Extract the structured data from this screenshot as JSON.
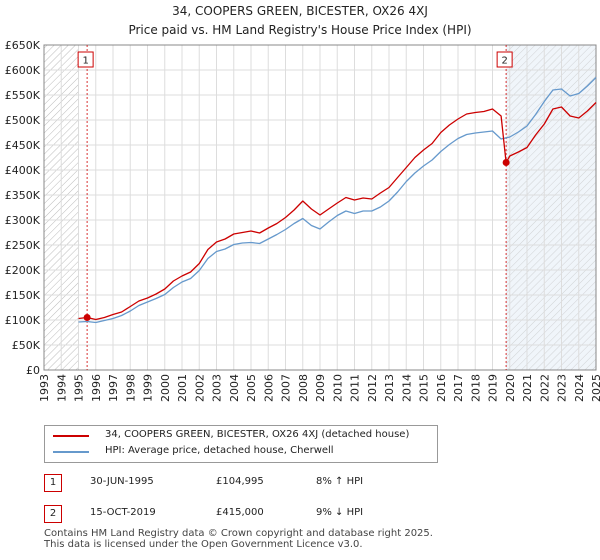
{
  "header": {
    "title": "34, COOPERS GREEN, BICESTER, OX26 4XJ",
    "subtitle": "Price paid vs. HM Land Registry's House Price Index (HPI)"
  },
  "legend": {
    "red_label": "34, COOPERS GREEN, BICESTER, OX26 4XJ (detached house)",
    "blue_label": "HPI: Average price, detached house, Cherwell"
  },
  "sales": [
    {
      "num": "1",
      "date": "30-JUN-1995",
      "price": "£104,995",
      "hpi": "8% ↑ HPI"
    },
    {
      "num": "2",
      "date": "15-OCT-2019",
      "price": "£415,000",
      "hpi": "9% ↓ HPI"
    }
  ],
  "footer": {
    "line1": "Contains HM Land Registry data © Crown copyright and database right 2025.",
    "line2": "This data is licensed under the Open Government Licence v3.0."
  },
  "colors": {
    "red": "#cc0000",
    "blue": "#6699cc",
    "grid": "#dddddd",
    "hatch": "#bbbbbb",
    "shade": "#dde8f4"
  },
  "chart_data": {
    "type": "line",
    "title": "34, COOPERS GREEN, BICESTER, OX26 4XJ",
    "subtitle": "Price paid vs. HM Land Registry's House Price Index (HPI)",
    "xlabel": "",
    "ylabel": "",
    "xlim": [
      1993,
      2025
    ],
    "ylim": [
      0,
      650000
    ],
    "x_ticks": [
      1993,
      1994,
      1995,
      1996,
      1997,
      1998,
      1999,
      2000,
      2001,
      2002,
      2003,
      2004,
      2005,
      2006,
      2007,
      2008,
      2009,
      2010,
      2011,
      2012,
      2013,
      2014,
      2015,
      2016,
      2017,
      2018,
      2019,
      2020,
      2021,
      2022,
      2023,
      2024,
      2025
    ],
    "y_ticks": [
      0,
      50000,
      100000,
      150000,
      200000,
      250000,
      300000,
      350000,
      400000,
      450000,
      500000,
      550000,
      600000,
      650000
    ],
    "y_tick_labels": [
      "£0",
      "£50K",
      "£100K",
      "£150K",
      "£200K",
      "£250K",
      "£300K",
      "£350K",
      "£400K",
      "£450K",
      "£500K",
      "£550K",
      "£600K",
      "£650K"
    ],
    "grid": true,
    "shaded_ranges": [
      [
        1993,
        1995.0
      ],
      [
        2019.79,
        2025
      ]
    ],
    "markers": [
      {
        "label": "1",
        "x": 1995.5,
        "y": 104995
      },
      {
        "label": "2",
        "x": 2019.79,
        "y": 415000
      }
    ],
    "series": [
      {
        "name": "34, COOPERS GREEN, BICESTER, OX26 4XJ (detached house)",
        "color": "#cc0000",
        "x": [
          1995.0,
          1995.5,
          1996,
          1996.5,
          1997,
          1997.5,
          1998,
          1998.5,
          1999,
          1999.5,
          2000,
          2000.5,
          2001,
          2001.5,
          2002,
          2002.5,
          2003,
          2003.5,
          2004,
          2004.5,
          2005,
          2005.5,
          2006,
          2006.5,
          2007,
          2007.5,
          2008,
          2008.5,
          2009,
          2009.5,
          2010,
          2010.5,
          2011,
          2011.5,
          2012,
          2012.5,
          2013,
          2013.5,
          2014,
          2014.5,
          2015,
          2015.5,
          2016,
          2016.5,
          2017,
          2017.5,
          2018,
          2018.5,
          2019,
          2019.5,
          2019.79,
          2020,
          2020.5,
          2021,
          2021.5,
          2022,
          2022.5,
          2023,
          2023.5,
          2024,
          2024.5,
          2025
        ],
        "values": [
          103000,
          104995,
          101000,
          105000,
          111000,
          116000,
          127000,
          138000,
          144000,
          152000,
          162000,
          178000,
          188000,
          196000,
          213000,
          241000,
          256000,
          262000,
          272000,
          275000,
          278000,
          274000,
          284000,
          293000,
          305000,
          320000,
          338000,
          322000,
          310000,
          322000,
          334000,
          345000,
          340000,
          344000,
          342000,
          354000,
          365000,
          385000,
          405000,
          425000,
          440000,
          453000,
          475000,
          490000,
          502000,
          512000,
          515000,
          517000,
          522000,
          508000,
          415000,
          428000,
          436000,
          445000,
          470000,
          492000,
          522000,
          526000,
          508000,
          504000,
          518000,
          535000
        ]
      },
      {
        "name": "HPI: Average price, detached house, Cherwell",
        "color": "#6699cc",
        "x": [
          1995.0,
          1995.5,
          1996,
          1996.5,
          1997,
          1997.5,
          1998,
          1998.5,
          1999,
          1999.5,
          2000,
          2000.5,
          2001,
          2001.5,
          2002,
          2002.5,
          2003,
          2003.5,
          2004,
          2004.5,
          2005,
          2005.5,
          2006,
          2006.5,
          2007,
          2007.5,
          2008,
          2008.5,
          2009,
          2009.5,
          2010,
          2010.5,
          2011,
          2011.5,
          2012,
          2012.5,
          2013,
          2013.5,
          2014,
          2014.5,
          2015,
          2015.5,
          2016,
          2016.5,
          2017,
          2017.5,
          2018,
          2018.5,
          2019,
          2019.5,
          2020,
          2020.5,
          2021,
          2021.5,
          2022,
          2022.5,
          2023,
          2023.5,
          2024,
          2024.5,
          2025
        ],
        "values": [
          96000,
          97000,
          95000,
          99000,
          103000,
          109000,
          118000,
          129000,
          136000,
          143000,
          151000,
          165000,
          176000,
          183000,
          199000,
          223000,
          237000,
          242000,
          251000,
          254000,
          255000,
          253000,
          262000,
          271000,
          281000,
          293000,
          303000,
          289000,
          282000,
          296000,
          309000,
          318000,
          313000,
          318000,
          318000,
          326000,
          338000,
          356000,
          377000,
          394000,
          408000,
          420000,
          437000,
          451000,
          463000,
          471000,
          474000,
          476000,
          478000,
          462000,
          466000,
          476000,
          488000,
          511000,
          537000,
          560000,
          562000,
          548000,
          553000,
          568000,
          585000
        ]
      }
    ]
  }
}
